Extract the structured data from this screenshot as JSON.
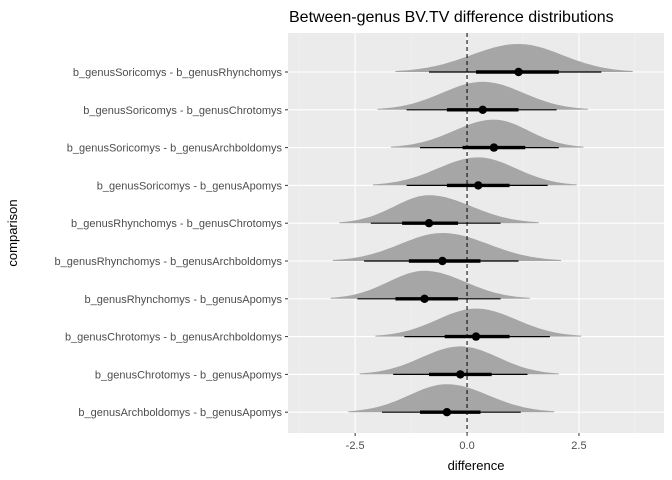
{
  "chart_data": {
    "type": "area",
    "subtype": "halfeye-density-with-interval",
    "title": "Between-genus BV.TV difference distributions",
    "xlabel": "difference",
    "ylabel": "comparison",
    "xlim": [
      -4.0,
      4.4
    ],
    "xticks": [
      -2.5,
      0,
      2.5
    ],
    "xtick_labels": [
      "-2.5",
      "0.0",
      "2.5"
    ],
    "reference_line_x": 0,
    "grid": true,
    "colors": {
      "panel_background": "#ebebeb",
      "grid_major": "#ffffff",
      "grid_minor": "#f3f3f3",
      "density_fill": "#a6a6a6",
      "interval": "#000000",
      "reference_line": "#000000"
    },
    "categories": [
      "b_genusSoricomys - b_genusRhynchomys",
      "b_genusSoricomys - b_genusChrotomys",
      "b_genusSoricomys - b_genusArchboldomys",
      "b_genusSoricomys - b_genusApomys",
      "b_genusRhynchomys - b_genusChrotomys",
      "b_genusRhynchomys - b_genusArchboldomys",
      "b_genusRhynchomys - b_genusApomys",
      "b_genusChrotomys - b_genusArchboldomys",
      "b_genusChrotomys - b_genusApomys",
      "b_genusArchboldomys - b_genusApomys"
    ],
    "series": [
      {
        "category": "b_genusSoricomys - b_genusRhynchomys",
        "median": 1.15,
        "interval_66": [
          0.2,
          2.05
        ],
        "interval_95": [
          -0.85,
          3.0
        ],
        "density_range": [
          -1.6,
          3.7
        ],
        "density_peak": 1.15
      },
      {
        "category": "b_genusSoricomys - b_genusChrotomys",
        "median": 0.35,
        "interval_66": [
          -0.45,
          1.15
        ],
        "interval_95": [
          -1.35,
          2.0
        ],
        "density_range": [
          -2.0,
          2.7
        ],
        "density_peak": 0.35
      },
      {
        "category": "b_genusSoricomys - b_genusArchboldomys",
        "median": 0.6,
        "interval_66": [
          -0.1,
          1.3
        ],
        "interval_95": [
          -1.05,
          2.05
        ],
        "density_range": [
          -1.7,
          2.6
        ],
        "density_peak": 0.6
      },
      {
        "category": "b_genusSoricomys - b_genusApomys",
        "median": 0.25,
        "interval_66": [
          -0.45,
          0.95
        ],
        "interval_95": [
          -1.35,
          1.8
        ],
        "density_range": [
          -2.1,
          2.45
        ],
        "density_peak": 0.25
      },
      {
        "category": "b_genusRhynchomys - b_genusChrotomys",
        "median": -0.85,
        "interval_66": [
          -1.45,
          -0.2
        ],
        "interval_95": [
          -2.15,
          0.75
        ],
        "density_range": [
          -2.85,
          1.6
        ],
        "density_peak": -0.85
      },
      {
        "category": "b_genusRhynchomys - b_genusArchboldomys",
        "median": -0.55,
        "interval_66": [
          -1.3,
          0.3
        ],
        "interval_95": [
          -2.3,
          1.15
        ],
        "density_range": [
          -3.0,
          2.1
        ],
        "density_peak": -0.55
      },
      {
        "category": "b_genusRhynchomys - b_genusApomys",
        "median": -0.95,
        "interval_66": [
          -1.6,
          -0.2
        ],
        "interval_95": [
          -2.45,
          0.75
        ],
        "density_range": [
          -3.05,
          1.4
        ],
        "density_peak": -0.95
      },
      {
        "category": "b_genusChrotomys - b_genusArchboldomys",
        "median": 0.2,
        "interval_66": [
          -0.5,
          0.95
        ],
        "interval_95": [
          -1.4,
          1.85
        ],
        "density_range": [
          -2.05,
          2.55
        ],
        "density_peak": 0.2
      },
      {
        "category": "b_genusChrotomys - b_genusApomys",
        "median": -0.15,
        "interval_66": [
          -0.85,
          0.55
        ],
        "interval_95": [
          -1.65,
          1.35
        ],
        "density_range": [
          -2.4,
          2.05
        ],
        "density_peak": -0.15
      },
      {
        "category": "b_genusArchboldomys - b_genusApomys",
        "median": -0.45,
        "interval_66": [
          -1.05,
          0.3
        ],
        "interval_95": [
          -1.9,
          1.2
        ],
        "density_range": [
          -2.65,
          1.95
        ],
        "density_peak": -0.45
      }
    ]
  }
}
